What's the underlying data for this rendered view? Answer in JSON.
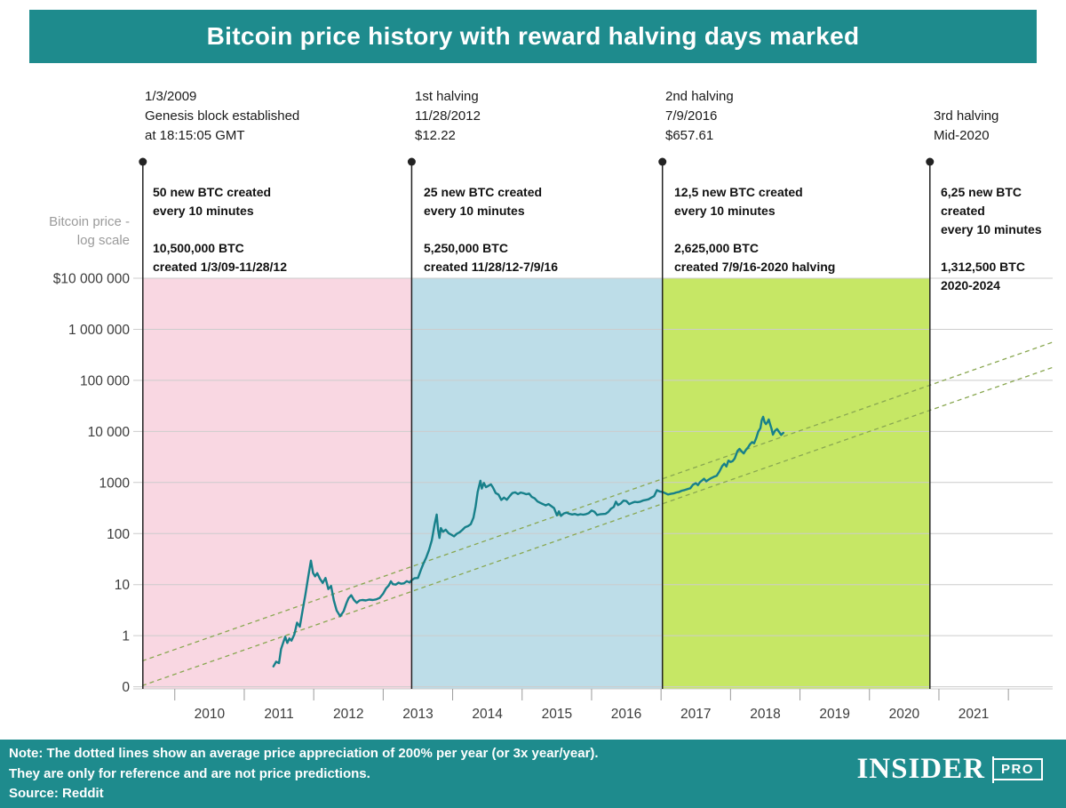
{
  "header": {
    "title": "Bitcoin price history with reward halving days marked"
  },
  "y_axis_title": "Bitcoin price -\nlog scale",
  "annotations": [
    {
      "heading": "1/3/2009\nGenesis block established\nat 18:15:05 GMT",
      "body": "50 new BTC created\nevery 10 minutes\n\n10,500,000 BTC\ncreated 1/3/09-11/28/12"
    },
    {
      "heading": "1st halving\n11/28/2012\n$12.22",
      "body": "25 new BTC created\nevery 10 minutes\n\n5,250,000 BTC\ncreated 11/28/12-7/9/16"
    },
    {
      "heading": "2nd halving\n7/9/2016\n$657.61",
      "body": "12,5 new BTC created\nevery 10 minutes\n\n2,625,000 BTC\ncreated 7/9/16-2020 halving"
    },
    {
      "heading": "3rd halving\nMid-2020",
      "body": "6,25 new BTC\ncreated\nevery 10 minutes\n\n1,312,500 BTC\n2020-2024"
    }
  ],
  "footer": {
    "note": "Note: The dotted lines show an average price appreciation of 200% per year (or 3x year/year).\nThey are only for reference and are not price predictions.\nSource: Reddit",
    "logo_main": "INSIDER",
    "logo_sub": "PRO"
  },
  "colors": {
    "teal": "#1e8b8d",
    "band_pink": "#f9d7e2",
    "band_blue": "#bddde8",
    "band_green": "#c6e765",
    "price_line": "#17808a",
    "dashed_line": "#89a751",
    "grid": "#cccccc",
    "marker": "#222222",
    "tick_text": "#3c3c3c"
  },
  "chart_data": {
    "type": "line",
    "title": "Bitcoin price history with reward halving days marked",
    "y_axis": {
      "label": "Bitcoin price - log scale",
      "scale": "log",
      "ticks": [
        {
          "label": "$10 000 000",
          "value": 10000000
        },
        {
          "label": "1 000 000",
          "value": 1000000
        },
        {
          "label": "100 000",
          "value": 100000
        },
        {
          "label": "10 000",
          "value": 10000
        },
        {
          "label": "1000",
          "value": 1000
        },
        {
          "label": "100",
          "value": 100
        },
        {
          "label": "10",
          "value": 10
        },
        {
          "label": "1",
          "value": 1
        },
        {
          "label": "0",
          "value": 0.1
        }
      ]
    },
    "x_axis": {
      "ticks": [
        2010,
        2011,
        2012,
        2013,
        2014,
        2015,
        2016,
        2017,
        2018,
        2019,
        2020,
        2021
      ],
      "range": [
        2009.03,
        2022.14
      ]
    },
    "bands": [
      {
        "name": "epoch-1-50btc",
        "from": 2009.03,
        "to": 2012.91,
        "color": "#f9d7e2"
      },
      {
        "name": "epoch-2-25btc",
        "from": 2012.91,
        "to": 2016.52,
        "color": "#bddde8"
      },
      {
        "name": "epoch-3-12.5btc",
        "from": 2016.52,
        "to": 2020.37,
        "color": "#c6e765"
      }
    ],
    "halving_markers": [
      {
        "year": 2009.03,
        "label": "Genesis block 1/3/2009"
      },
      {
        "year": 2012.91,
        "label": "1st halving 11/28/2012 $12.22"
      },
      {
        "year": 2016.52,
        "label": "2nd halving 7/9/2016 $657.61"
      },
      {
        "year": 2020.37,
        "label": "3rd halving Mid-2020"
      }
    ],
    "reference_lines": [
      {
        "name": "3x-per-year-lower",
        "points": [
          [
            2009.03,
            0.105
          ],
          [
            2022.14,
            180000
          ]
        ]
      },
      {
        "name": "3x-per-year-upper",
        "points": [
          [
            2009.03,
            0.32
          ],
          [
            2022.14,
            560000
          ]
        ]
      }
    ],
    "series": [
      {
        "name": "BTC price (USD)",
        "points": [
          [
            2010.92,
            0.25
          ],
          [
            2010.96,
            0.31
          ],
          [
            2011.0,
            0.29
          ],
          [
            2011.03,
            0.55
          ],
          [
            2011.06,
            0.72
          ],
          [
            2011.09,
            0.95
          ],
          [
            2011.12,
            0.72
          ],
          [
            2011.15,
            0.88
          ],
          [
            2011.18,
            0.8
          ],
          [
            2011.22,
            1.05
          ],
          [
            2011.26,
            1.8
          ],
          [
            2011.3,
            1.5
          ],
          [
            2011.34,
            3.1
          ],
          [
            2011.38,
            6.4
          ],
          [
            2011.42,
            14
          ],
          [
            2011.46,
            29.5
          ],
          [
            2011.49,
            17
          ],
          [
            2011.52,
            14.5
          ],
          [
            2011.55,
            16.8
          ],
          [
            2011.59,
            13
          ],
          [
            2011.63,
            10.8
          ],
          [
            2011.67,
            13.5
          ],
          [
            2011.71,
            8.2
          ],
          [
            2011.75,
            9.4
          ],
          [
            2011.79,
            4.9
          ],
          [
            2011.83,
            3.1
          ],
          [
            2011.88,
            2.4
          ],
          [
            2011.93,
            3.0
          ],
          [
            2011.97,
            4.3
          ],
          [
            2012.0,
            5.4
          ],
          [
            2012.04,
            6.2
          ],
          [
            2012.08,
            5.0
          ],
          [
            2012.12,
            4.4
          ],
          [
            2012.16,
            4.9
          ],
          [
            2012.2,
            5.0
          ],
          [
            2012.25,
            4.9
          ],
          [
            2012.3,
            5.1
          ],
          [
            2012.35,
            5.0
          ],
          [
            2012.4,
            5.15
          ],
          [
            2012.45,
            5.5
          ],
          [
            2012.5,
            6.7
          ],
          [
            2012.54,
            8.4
          ],
          [
            2012.58,
            9.6
          ],
          [
            2012.61,
            11.6
          ],
          [
            2012.64,
            10.2
          ],
          [
            2012.68,
            10.0
          ],
          [
            2012.72,
            10.9
          ],
          [
            2012.76,
            10.4
          ],
          [
            2012.8,
            10.6
          ],
          [
            2012.84,
            11.7
          ],
          [
            2012.88,
            11.0
          ],
          [
            2012.91,
            12.2
          ],
          [
            2012.95,
            13.3
          ],
          [
            2013.0,
            13.5
          ],
          [
            2013.04,
            19
          ],
          [
            2013.08,
            26
          ],
          [
            2013.12,
            34
          ],
          [
            2013.16,
            48
          ],
          [
            2013.2,
            74
          ],
          [
            2013.24,
            150
          ],
          [
            2013.27,
            235
          ],
          [
            2013.29,
            120
          ],
          [
            2013.31,
            82
          ],
          [
            2013.33,
            128
          ],
          [
            2013.36,
            108
          ],
          [
            2013.4,
            119
          ],
          [
            2013.44,
            102
          ],
          [
            2013.48,
            95
          ],
          [
            2013.52,
            88
          ],
          [
            2013.56,
            99
          ],
          [
            2013.6,
            106
          ],
          [
            2013.64,
            118
          ],
          [
            2013.68,
            133
          ],
          [
            2013.72,
            140
          ],
          [
            2013.76,
            152
          ],
          [
            2013.8,
            205
          ],
          [
            2013.83,
            340
          ],
          [
            2013.86,
            650
          ],
          [
            2013.9,
            1085
          ],
          [
            2013.92,
            760
          ],
          [
            2013.95,
            980
          ],
          [
            2013.98,
            810
          ],
          [
            2014.02,
            870
          ],
          [
            2014.05,
            920
          ],
          [
            2014.08,
            800
          ],
          [
            2014.12,
            620
          ],
          [
            2014.16,
            580
          ],
          [
            2014.2,
            455
          ],
          [
            2014.24,
            505
          ],
          [
            2014.28,
            460
          ],
          [
            2014.32,
            540
          ],
          [
            2014.36,
            620
          ],
          [
            2014.4,
            640
          ],
          [
            2014.44,
            595
          ],
          [
            2014.48,
            635
          ],
          [
            2014.52,
            615
          ],
          [
            2014.56,
            590
          ],
          [
            2014.6,
            605
          ],
          [
            2014.64,
            520
          ],
          [
            2014.68,
            490
          ],
          [
            2014.72,
            425
          ],
          [
            2014.76,
            400
          ],
          [
            2014.8,
            378
          ],
          [
            2014.84,
            355
          ],
          [
            2014.88,
            378
          ],
          [
            2014.92,
            345
          ],
          [
            2014.96,
            315
          ],
          [
            2015.0,
            228
          ],
          [
            2015.03,
            272
          ],
          [
            2015.06,
            222
          ],
          [
            2015.1,
            248
          ],
          [
            2015.14,
            257
          ],
          [
            2015.18,
            244
          ],
          [
            2015.22,
            236
          ],
          [
            2015.26,
            242
          ],
          [
            2015.3,
            232
          ],
          [
            2015.34,
            239
          ],
          [
            2015.38,
            234
          ],
          [
            2015.42,
            240
          ],
          [
            2015.46,
            252
          ],
          [
            2015.5,
            283
          ],
          [
            2015.54,
            268
          ],
          [
            2015.58,
            231
          ],
          [
            2015.62,
            238
          ],
          [
            2015.66,
            241
          ],
          [
            2015.7,
            243
          ],
          [
            2015.74,
            264
          ],
          [
            2015.78,
            308
          ],
          [
            2015.82,
            334
          ],
          [
            2015.85,
            420
          ],
          [
            2015.88,
            362
          ],
          [
            2015.92,
            388
          ],
          [
            2015.96,
            442
          ],
          [
            2016.0,
            432
          ],
          [
            2016.04,
            378
          ],
          [
            2016.08,
            398
          ],
          [
            2016.12,
            418
          ],
          [
            2016.16,
            412
          ],
          [
            2016.2,
            421
          ],
          [
            2016.24,
            443
          ],
          [
            2016.28,
            456
          ],
          [
            2016.32,
            468
          ],
          [
            2016.36,
            505
          ],
          [
            2016.4,
            540
          ],
          [
            2016.44,
            705
          ],
          [
            2016.48,
            668
          ],
          [
            2016.52,
            655
          ],
          [
            2016.56,
            618
          ],
          [
            2016.6,
            582
          ],
          [
            2016.64,
            598
          ],
          [
            2016.68,
            612
          ],
          [
            2016.72,
            638
          ],
          [
            2016.76,
            655
          ],
          [
            2016.8,
            692
          ],
          [
            2016.84,
            712
          ],
          [
            2016.88,
            742
          ],
          [
            2016.92,
            768
          ],
          [
            2016.96,
            905
          ],
          [
            2017.0,
            968
          ],
          [
            2017.03,
            888
          ],
          [
            2017.06,
            1012
          ],
          [
            2017.09,
            1095
          ],
          [
            2017.12,
            1185
          ],
          [
            2017.15,
            1055
          ],
          [
            2017.18,
            1125
          ],
          [
            2017.22,
            1215
          ],
          [
            2017.26,
            1292
          ],
          [
            2017.3,
            1348
          ],
          [
            2017.34,
            1640
          ],
          [
            2017.38,
            2100
          ],
          [
            2017.41,
            2330
          ],
          [
            2017.44,
            2060
          ],
          [
            2017.47,
            2680
          ],
          [
            2017.5,
            2520
          ],
          [
            2017.53,
            2620
          ],
          [
            2017.56,
            2940
          ],
          [
            2017.6,
            4150
          ],
          [
            2017.63,
            4550
          ],
          [
            2017.66,
            4050
          ],
          [
            2017.69,
            3710
          ],
          [
            2017.72,
            4340
          ],
          [
            2017.75,
            4820
          ],
          [
            2017.78,
            5600
          ],
          [
            2017.81,
            6180
          ],
          [
            2017.84,
            5850
          ],
          [
            2017.87,
            7420
          ],
          [
            2017.9,
            9950
          ],
          [
            2017.93,
            11600
          ],
          [
            2017.95,
            16600
          ],
          [
            2017.97,
            19300
          ],
          [
            2017.99,
            15200
          ],
          [
            2018.01,
            13900
          ],
          [
            2018.03,
            15100
          ],
          [
            2018.05,
            17150
          ],
          [
            2018.07,
            13800
          ],
          [
            2018.09,
            11300
          ],
          [
            2018.11,
            8650
          ],
          [
            2018.14,
            10300
          ],
          [
            2018.17,
            11150
          ],
          [
            2018.2,
            9750
          ],
          [
            2018.23,
            8550
          ],
          [
            2018.26,
            9350
          ]
        ]
      }
    ]
  }
}
